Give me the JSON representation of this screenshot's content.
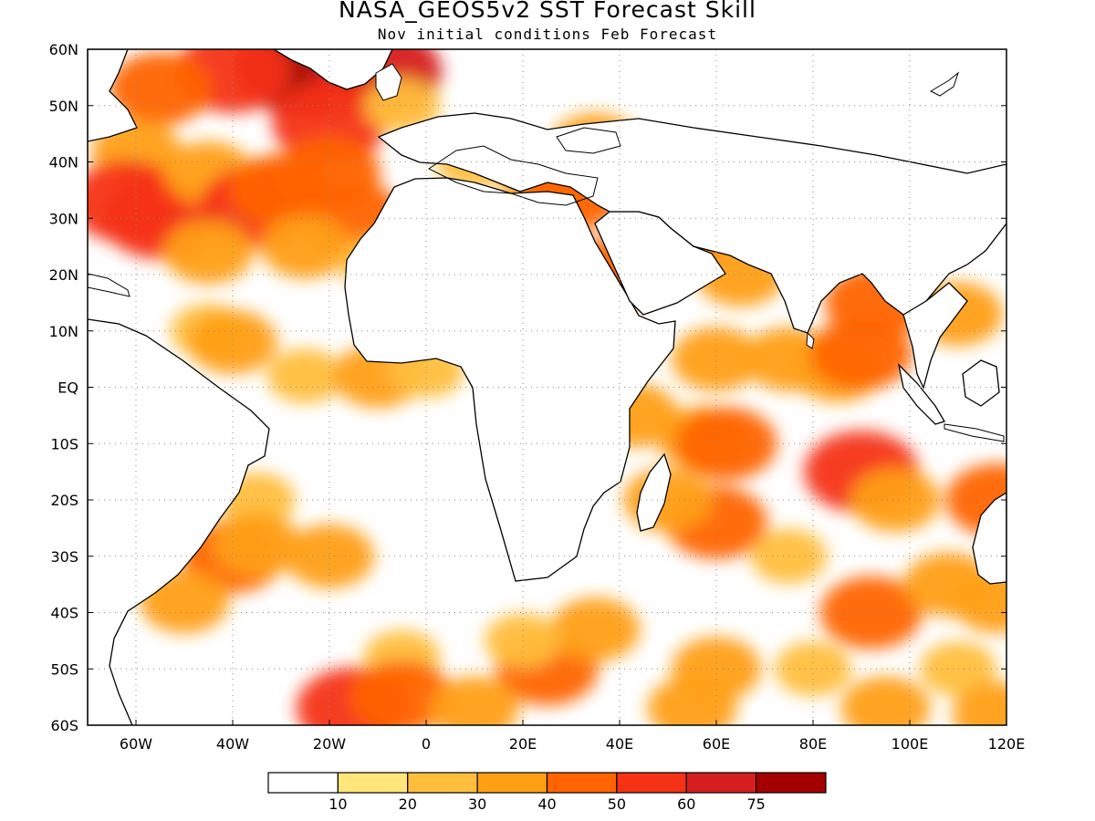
{
  "title": "NASA_GEOS5v2  SST Forecast Skill",
  "subtitle": "Nov initial conditions  Feb Forecast",
  "map": {
    "lon_range": [
      -70,
      120
    ],
    "lat_range": [
      -60,
      60
    ],
    "x_ticks": [
      {
        "lon": -60,
        "label": "60W"
      },
      {
        "lon": -40,
        "label": "40W"
      },
      {
        "lon": -20,
        "label": "20W"
      },
      {
        "lon": 0,
        "label": "0"
      },
      {
        "lon": 20,
        "label": "20E"
      },
      {
        "lon": 40,
        "label": "40E"
      },
      {
        "lon": 60,
        "label": "60E"
      },
      {
        "lon": 80,
        "label": "80E"
      },
      {
        "lon": 100,
        "label": "100E"
      },
      {
        "lon": 120,
        "label": "120E"
      }
    ],
    "y_ticks": [
      {
        "lat": 60,
        "label": "60N"
      },
      {
        "lat": 50,
        "label": "50N"
      },
      {
        "lat": 40,
        "label": "40N"
      },
      {
        "lat": 30,
        "label": "30N"
      },
      {
        "lat": 20,
        "label": "20N"
      },
      {
        "lat": 10,
        "label": "10N"
      },
      {
        "lat": 0,
        "label": "EQ"
      },
      {
        "lat": -10,
        "label": "10S"
      },
      {
        "lat": -20,
        "label": "20S"
      },
      {
        "lat": -30,
        "label": "30S"
      },
      {
        "lat": -40,
        "label": "40S"
      },
      {
        "lat": -50,
        "label": "50S"
      },
      {
        "lat": -60,
        "label": "60S"
      }
    ],
    "grid": true
  },
  "colorbar": {
    "colors": [
      "#ffffff",
      "#ffe57a",
      "#ffbe3c",
      "#ff9f14",
      "#ff6400",
      "#f53214",
      "#d71e1e",
      "#a50000"
    ],
    "labels": [
      "10",
      "20",
      "30",
      "40",
      "50",
      "60",
      "75"
    ]
  },
  "features": [
    {
      "lon": -25,
      "lat": 57,
      "level": 7
    },
    {
      "lon": -10,
      "lat": 56,
      "level": 6
    },
    {
      "lon": -40,
      "lat": 56,
      "level": 5
    },
    {
      "lon": -55,
      "lat": 53,
      "level": 4
    },
    {
      "lon": -20,
      "lat": 47,
      "level": 5
    },
    {
      "lon": -5,
      "lat": 50,
      "level": 2
    },
    {
      "lon": -60,
      "lat": 42,
      "level": 3
    },
    {
      "lon": -62,
      "lat": 33,
      "level": 5
    },
    {
      "lon": -55,
      "lat": 30,
      "level": 5
    },
    {
      "lon": -45,
      "lat": 38,
      "level": 3
    },
    {
      "lon": -35,
      "lat": 32,
      "level": 5
    },
    {
      "lon": -30,
      "lat": 35,
      "level": 4
    },
    {
      "lon": -20,
      "lat": 38,
      "level": 4
    },
    {
      "lon": -15,
      "lat": 30,
      "level": 4
    },
    {
      "lon": -25,
      "lat": 25,
      "level": 3
    },
    {
      "lon": -45,
      "lat": 24,
      "level": 3
    },
    {
      "lon": -10,
      "lat": 22,
      "level": 2
    },
    {
      "lon": 10,
      "lat": 40,
      "level": 2
    },
    {
      "lon": 25,
      "lat": 35,
      "level": 3
    },
    {
      "lon": 30,
      "lat": 34,
      "level": 4
    },
    {
      "lon": 35,
      "lat": 43,
      "level": 3
    },
    {
      "lon": 38,
      "lat": 20,
      "level": 4
    },
    {
      "lon": 52,
      "lat": 26,
      "level": 4
    },
    {
      "lon": 65,
      "lat": 20,
      "level": 3
    },
    {
      "lon": 93,
      "lat": 15,
      "level": 4
    },
    {
      "lon": 110,
      "lat": 13,
      "level": 3
    },
    {
      "lon": -45,
      "lat": 10,
      "level": 2
    },
    {
      "lon": -40,
      "lat": 8,
      "level": 3
    },
    {
      "lon": -25,
      "lat": 2,
      "level": 2
    },
    {
      "lon": -10,
      "lat": 2,
      "level": 3
    },
    {
      "lon": 0,
      "lat": 3,
      "level": 2
    },
    {
      "lon": 60,
      "lat": 5,
      "level": 3
    },
    {
      "lon": 75,
      "lat": 5,
      "level": 3
    },
    {
      "lon": 85,
      "lat": 3,
      "level": 3
    },
    {
      "lon": 90,
      "lat": 6,
      "level": 4
    },
    {
      "lon": 43,
      "lat": -5,
      "level": 3
    },
    {
      "lon": 57,
      "lat": -9,
      "level": 3
    },
    {
      "lon": 62,
      "lat": -10,
      "level": 4
    },
    {
      "lon": 90,
      "lat": -15,
      "level": 5
    },
    {
      "lon": 97,
      "lat": -20,
      "level": 3
    },
    {
      "lon": 60,
      "lat": -24,
      "level": 4
    },
    {
      "lon": 50,
      "lat": -20,
      "level": 3
    },
    {
      "lon": 75,
      "lat": -30,
      "level": 2
    },
    {
      "lon": 92,
      "lat": -40,
      "level": 4
    },
    {
      "lon": 108,
      "lat": -35,
      "level": 3
    },
    {
      "lon": 118,
      "lat": -20,
      "level": 4
    },
    {
      "lon": 118,
      "lat": -38,
      "level": 3
    },
    {
      "lon": -35,
      "lat": -20,
      "level": 2
    },
    {
      "lon": -40,
      "lat": -30,
      "level": 4
    },
    {
      "lon": -35,
      "lat": -28,
      "level": 3
    },
    {
      "lon": -20,
      "lat": -30,
      "level": 3
    },
    {
      "lon": -50,
      "lat": -38,
      "level": 3
    },
    {
      "lon": -5,
      "lat": -48,
      "level": 2
    },
    {
      "lon": 25,
      "lat": -50,
      "level": 4
    },
    {
      "lon": 35,
      "lat": -43,
      "level": 3
    },
    {
      "lon": 20,
      "lat": -45,
      "level": 2
    },
    {
      "lon": -15,
      "lat": -57,
      "level": 5
    },
    {
      "lon": -5,
      "lat": -55,
      "level": 4
    },
    {
      "lon": 10,
      "lat": -57,
      "level": 3
    },
    {
      "lon": 55,
      "lat": -57,
      "level": 3
    },
    {
      "lon": 60,
      "lat": -50,
      "level": 3
    },
    {
      "lon": 80,
      "lat": -50,
      "level": 2
    },
    {
      "lon": 95,
      "lat": -57,
      "level": 3
    },
    {
      "lon": 110,
      "lat": -50,
      "level": 2
    },
    {
      "lon": 118,
      "lat": -58,
      "level": 3
    }
  ]
}
